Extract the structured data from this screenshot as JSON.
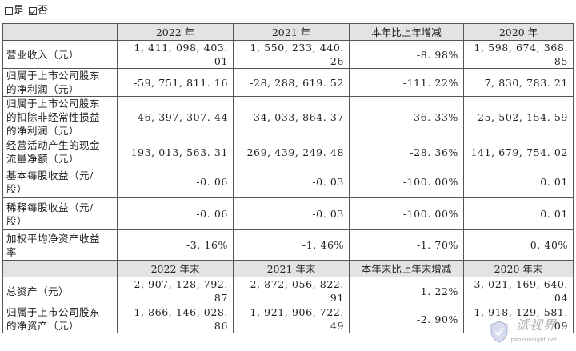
{
  "checkboxes": [
    {
      "label": "是",
      "checked": false
    },
    {
      "label": "否",
      "checked": true
    }
  ],
  "table": {
    "header_top": [
      "",
      "2022 年",
      "2021 年",
      "本年比上年增减",
      "2020 年"
    ],
    "rows_top": [
      {
        "label": [
          "营业收入（元）"
        ],
        "values": [
          "1, 411, 098, 403. 01",
          "1, 550, 233, 440. 26",
          "-8. 98%",
          "1, 598, 674, 368. 85"
        ]
      },
      {
        "label": [
          "归属于上市公司股东",
          "的净利润（元）"
        ],
        "values": [
          "-59, 751, 811. 16",
          "-28, 288, 619. 52",
          "-111. 22%",
          "7, 830, 783. 21"
        ]
      },
      {
        "label": [
          "归属于上市公司股东",
          "的扣除非经常性损益",
          "的净利润（元）"
        ],
        "values": [
          "-46, 397, 307. 44",
          "-34, 033, 864. 37",
          "-36. 33%",
          "25, 502, 154. 59"
        ]
      },
      {
        "label": [
          "经营活动产生的现金",
          "流量净额（元）"
        ],
        "values": [
          "193, 013, 563. 31",
          "269, 439, 249. 48",
          "-28. 36%",
          "141, 679, 754. 02"
        ]
      },
      {
        "label": [
          "基本每股收益（元/",
          "股）"
        ],
        "values": [
          "-0. 06",
          "-0. 03",
          "-100. 00%",
          "0. 01"
        ]
      },
      {
        "label": [
          "稀释每股收益（元/",
          "股）"
        ],
        "values": [
          "-0. 06",
          "-0. 03",
          "-100. 00%",
          "0. 01"
        ]
      },
      {
        "label": [
          "加权平均净资产收益",
          "率"
        ],
        "values": [
          "-3. 16%",
          "-1. 46%",
          "-1. 70%",
          "0. 40%"
        ]
      }
    ],
    "header_bottom": [
      "",
      "2022 年末",
      "2021 年末",
      "本年末比上年末增减",
      "2020 年末"
    ],
    "rows_bottom": [
      {
        "label": [
          "总资产（元）"
        ],
        "values": [
          "2, 907, 128, 792. 87",
          "2, 872, 056, 822. 91",
          "1. 22%",
          "3, 021, 169, 640. 04"
        ]
      },
      {
        "label": [
          "归属于上市公司股东",
          "的净资产（元）"
        ],
        "values": [
          "1, 866, 146, 028. 86",
          "1, 921, 906, 722. 49",
          "-2. 90%",
          "1, 918, 129, 581. 09"
        ]
      }
    ]
  },
  "watermark": {
    "text": "派视界",
    "url": "paperinsight.net"
  }
}
